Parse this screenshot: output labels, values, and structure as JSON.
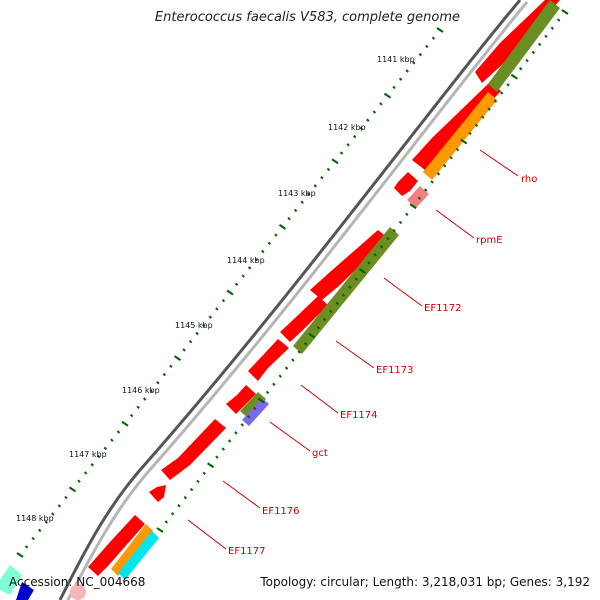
{
  "map": {
    "title": "Enterococcus faecalis V583, complete genome",
    "accession": "Accession: NC_004668",
    "topology": "Topology: circular; Length: 3,218,031 bp; Genes: 3,192"
  },
  "ticks": [
    {
      "label": "1141 kbp"
    },
    {
      "label": "1142 kbp"
    },
    {
      "label": "1143 kbp"
    },
    {
      "label": "1144 kbp"
    },
    {
      "label": "1145 kbp"
    },
    {
      "label": "1146 kbp"
    },
    {
      "label": "1147 kbp"
    },
    {
      "label": "1148 kbp"
    }
  ],
  "genes": [
    {
      "label": "rho"
    },
    {
      "label": "rpmE"
    },
    {
      "label": "EF1172"
    },
    {
      "label": "EF1173"
    },
    {
      "label": "EF1174"
    },
    {
      "label": "gct"
    },
    {
      "label": "EF1176"
    },
    {
      "label": "EF1177"
    }
  ],
  "colors": {
    "cds": "#ff0000",
    "cog_olive": "#6b8e23",
    "cog_orange": "#ff9900",
    "cog_purple": "#7b68ee",
    "cog_cyan": "#00e5ee",
    "rna": "#f08080",
    "backbone": "#7f7f7f",
    "tick": "#006400",
    "label": "#cc0000"
  }
}
